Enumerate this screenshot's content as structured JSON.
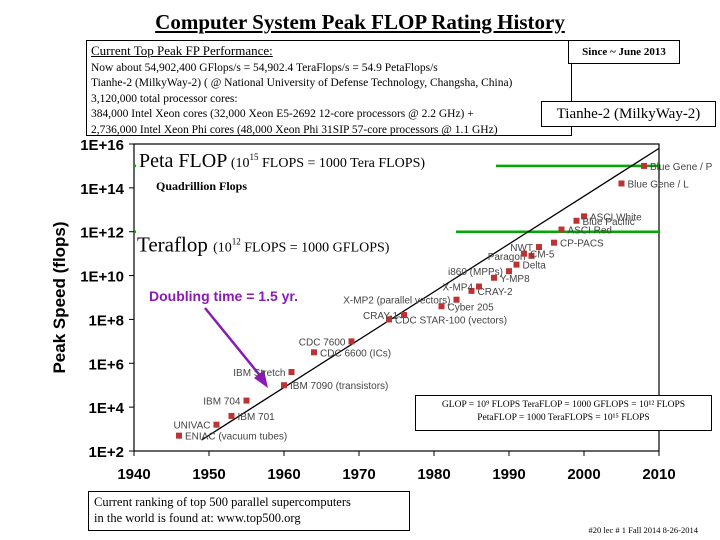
{
  "title": "Computer System Peak FLOP Rating History",
  "info_box": {
    "heading": "Current Top Peak FP Performance:",
    "lines": [
      "Now about 54,902,400 GFlops/s = 54,902.4  TeraFlops/s = 54.9 PetaFlops/s",
      "Tianhe-2 (MilkyWay-2)  ( @ National University of Defense Technology, Changsha, China)",
      "3,120,000 total processor cores:",
      "384,000 Intel Xeon cores (32,000 Xeon E5-2692 12-core processors @ 2.2 GHz) +",
      "2,736,000 Intel Xeon Phi cores (48,000 Xeon Phi 31SIP 57-core processors @ 1.1 GHz)"
    ]
  },
  "since_label": "Since ~ June 2013",
  "tianhe_label": "Tianhe-2 (MilkyWay-2)",
  "glop_box": {
    "line1": "GLOP = 10⁹ FLOPS   TeraFLOP = 1000  GFLOPS = 10¹² FLOPS",
    "line2": "PetaFLOP = 1000 TeraFLOPS = 10¹⁵ FLOPS"
  },
  "ranking_note": {
    "line1": "Current ranking of top 500 parallel supercomputers",
    "line2": "in the world is found at:  www.top500.org"
  },
  "footer": "#20   lec # 1   Fall 2014   8-26-2014",
  "colors": {
    "grid_line": "#00aa00",
    "point": "#bb3333",
    "arrow": "#8a1ab5",
    "trend": "#000000"
  },
  "chart_data": {
    "type": "scatter",
    "xlabel": "",
    "ylabel": "Peak Speed (flops)",
    "xlim": [
      1940,
      2010
    ],
    "ylim": [
      2,
      16
    ],
    "log_y": true,
    "x_ticks": [
      "1940",
      "1950",
      "1960",
      "1970",
      "1980",
      "1990",
      "2000",
      "2010"
    ],
    "y_ticks": [
      "1E+2",
      "1E+4",
      "1E+6",
      "1E+8",
      "1E+10",
      "1E+12",
      "1E+14",
      "1E+16"
    ],
    "trend_line": {
      "x": [
        1949,
        2010
      ],
      "y": [
        2.5,
        15.8
      ]
    },
    "annotations": {
      "peta": {
        "main": "Peta FLOP",
        "rest": " (10",
        "sup": "15",
        "tail": " FLOPS = 1000 Tera FLOPS)",
        "sub": "Quadrillion Flops",
        "level": 15
      },
      "tera": {
        "main": "Teraflop",
        "rest": "(10",
        "sup": "12",
        "tail": " FLOPS = 1000 GFLOPS)",
        "level": 12
      },
      "doubling": "Doubling time = 1.5 yr."
    },
    "points": [
      {
        "label": "ENIAC (vacuum tubes)",
        "x": 1946,
        "y": 2.7
      },
      {
        "label": "UNIVAC",
        "x": 1951,
        "y": 3.2
      },
      {
        "label": "IBM 701",
        "x": 1953,
        "y": 3.6
      },
      {
        "label": "IBM 704",
        "x": 1955,
        "y": 4.3
      },
      {
        "label": "IBM 7090 (transistors)",
        "x": 1960,
        "y": 5.0
      },
      {
        "label": "IBM Stretch",
        "x": 1961,
        "y": 5.6
      },
      {
        "label": "CDC 6600 (ICs)",
        "x": 1964,
        "y": 6.5
      },
      {
        "label": "CDC 7600",
        "x": 1969,
        "y": 7.0
      },
      {
        "label": "CDC STAR-100 (vectors)",
        "x": 1974,
        "y": 8.0
      },
      {
        "label": "CRAY-1",
        "x": 1976,
        "y": 8.2
      },
      {
        "label": "Cyber 205",
        "x": 1981,
        "y": 8.6
      },
      {
        "label": "X-MP2 (parallel vectors)",
        "x": 1983,
        "y": 8.9
      },
      {
        "label": "CRAY-2",
        "x": 1985,
        "y": 9.3
      },
      {
        "label": "X-MP4",
        "x": 1986,
        "y": 9.5
      },
      {
        "label": "Y-MP8",
        "x": 1988,
        "y": 9.9
      },
      {
        "label": "i860 (MPPs)",
        "x": 1990,
        "y": 10.2
      },
      {
        "label": "Delta",
        "x": 1991,
        "y": 10.5
      },
      {
        "label": "Paragon",
        "x": 1993,
        "y": 10.9
      },
      {
        "label": "CM-5",
        "x": 1992,
        "y": 11.0
      },
      {
        "label": "NWT",
        "x": 1994,
        "y": 11.3
      },
      {
        "label": "CP-PACS",
        "x": 1996,
        "y": 11.5
      },
      {
        "label": "ASCI Red",
        "x": 1997,
        "y": 12.1
      },
      {
        "label": "ASCI White",
        "x": 2000,
        "y": 12.7
      },
      {
        "label": "Blue Pacific",
        "x": 1999,
        "y": 12.5
      },
      {
        "label": "Blue Gene / L",
        "x": 2005,
        "y": 14.2
      },
      {
        "label": "Blue Gene / P",
        "x": 2008,
        "y": 15.0
      }
    ]
  }
}
